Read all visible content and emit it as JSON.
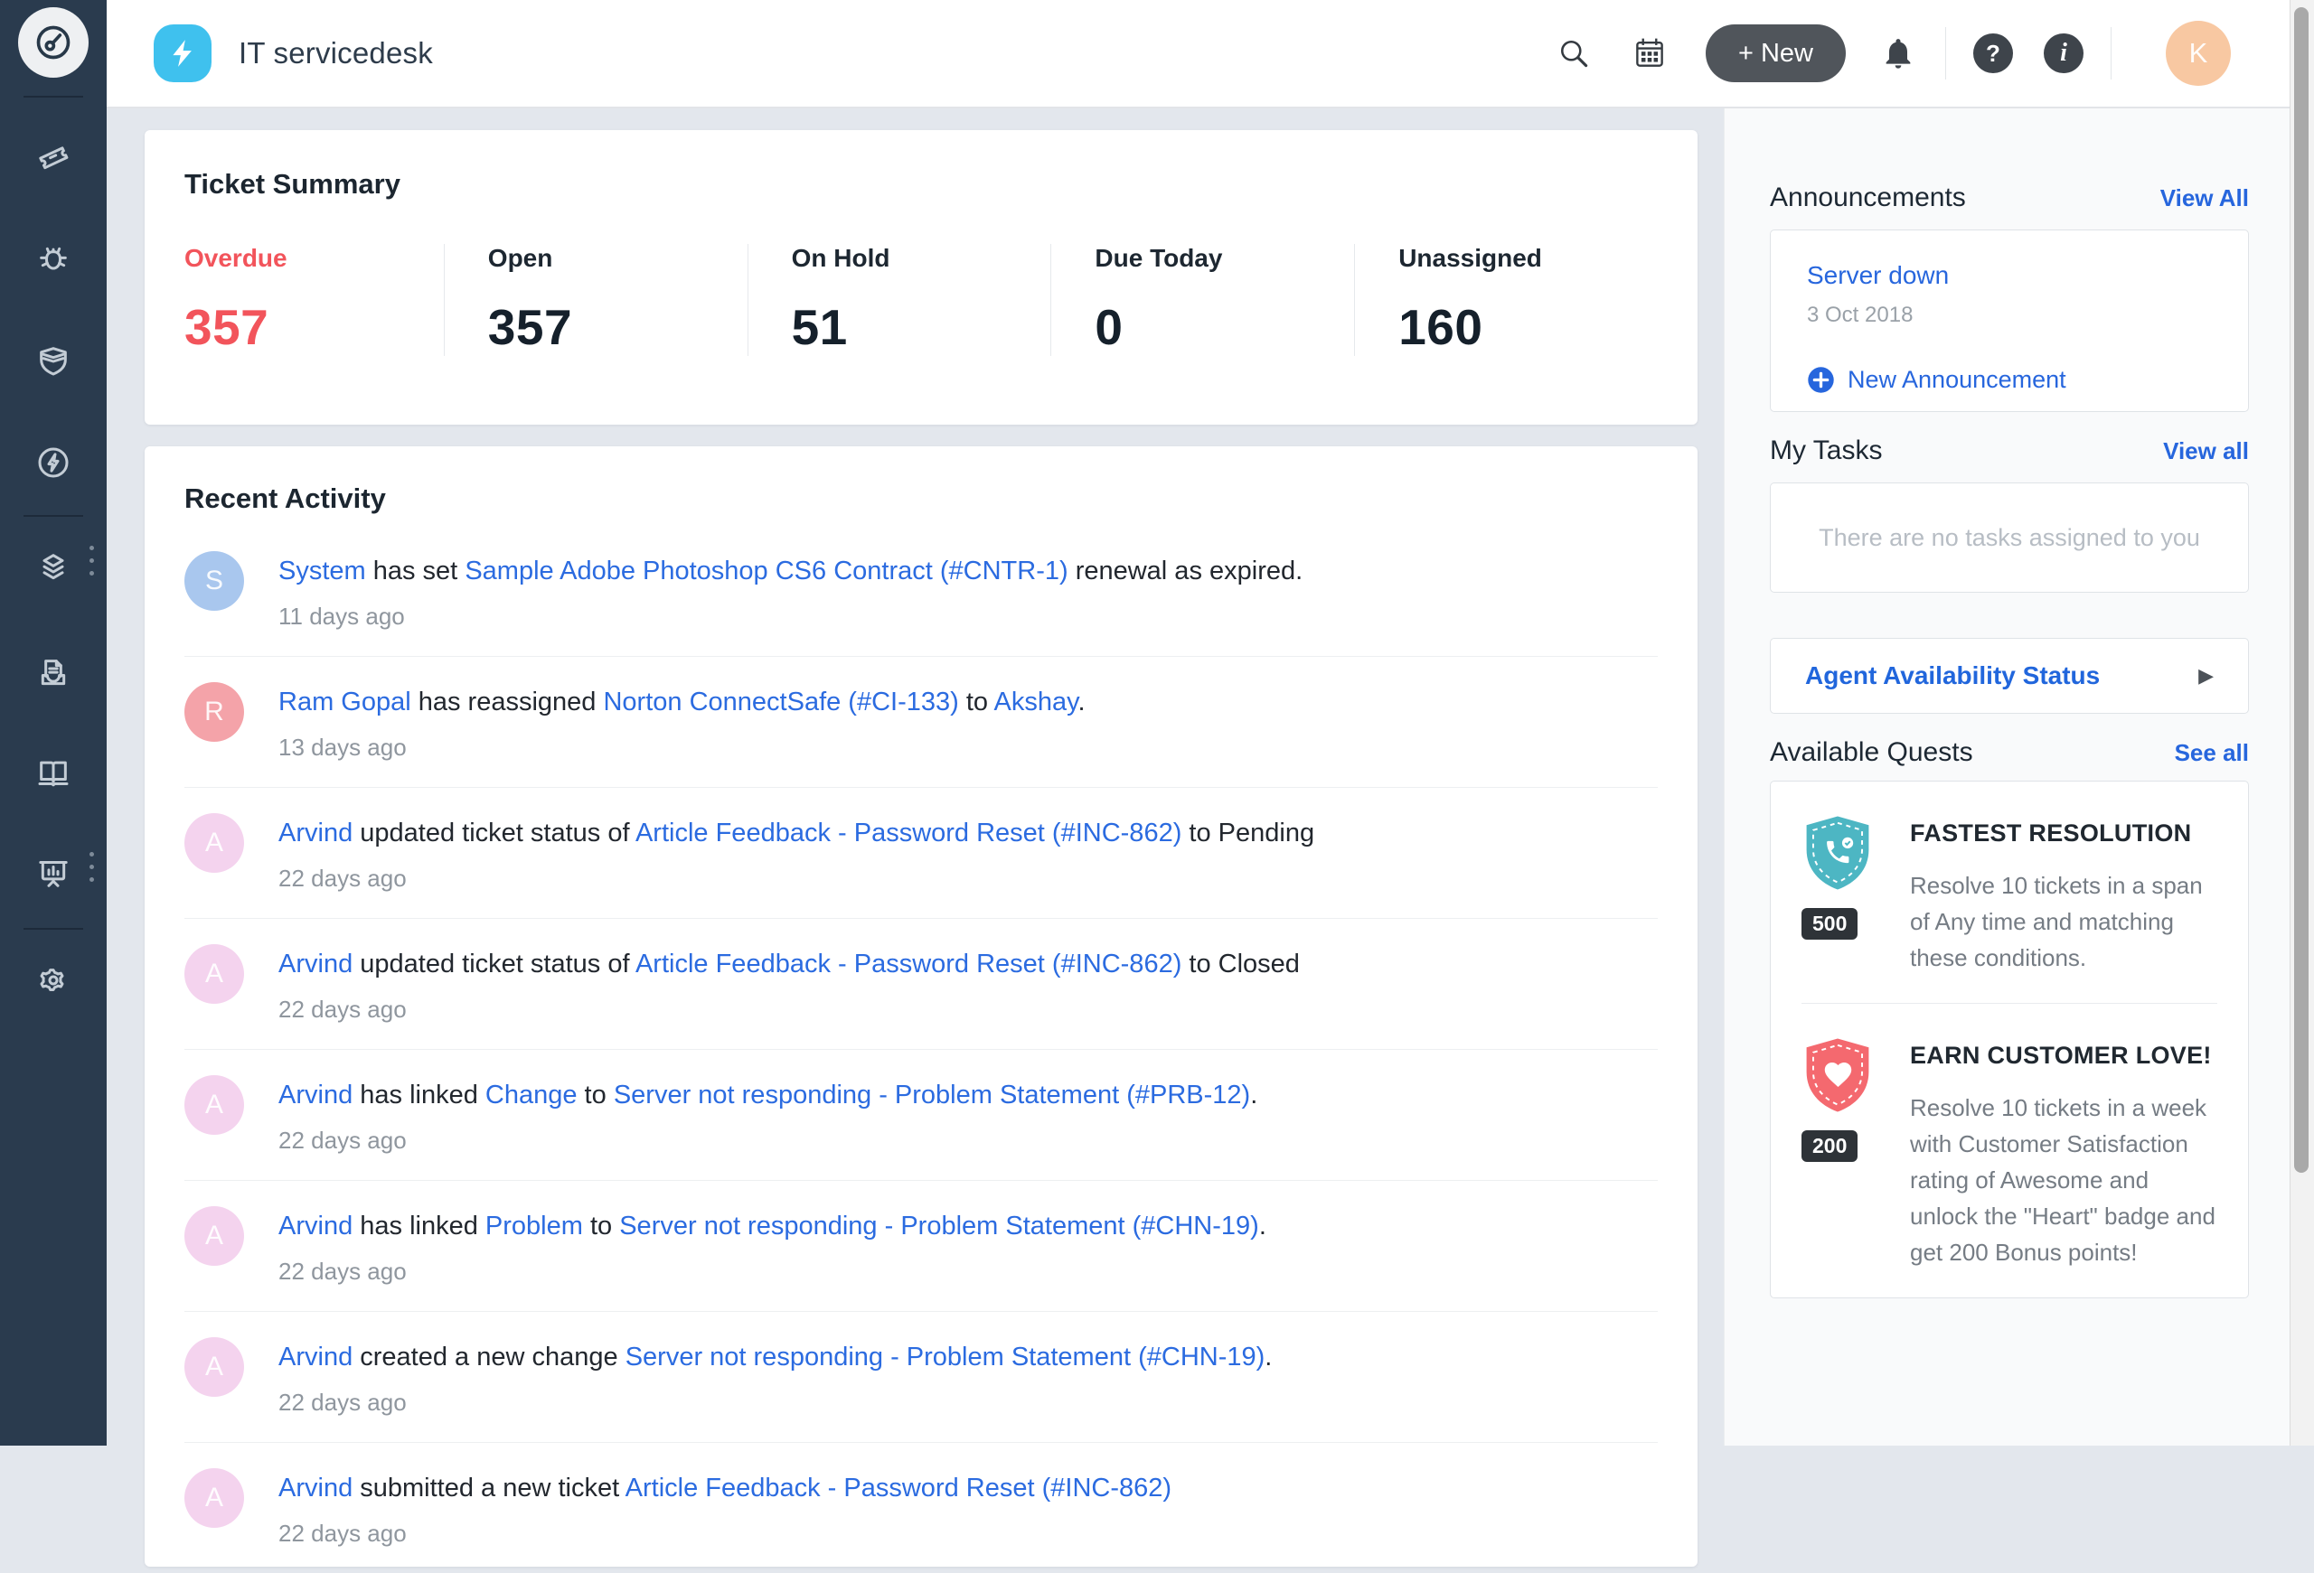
{
  "header": {
    "product_title": "IT servicedesk",
    "new_button_label": "+ New",
    "help_badge": "?",
    "info_badge": "i",
    "avatar_initial": "K"
  },
  "sidebar": {
    "icons": [
      "dashboard-gauge",
      "ticket",
      "bug",
      "shield",
      "bolt-circle",
      "layers",
      "document-tray",
      "book",
      "presentation-chart",
      "gear"
    ]
  },
  "ticket_summary": {
    "title": "Ticket Summary",
    "stats": [
      {
        "label": "Overdue",
        "value": "357",
        "highlight": true
      },
      {
        "label": "Open",
        "value": "357",
        "highlight": false
      },
      {
        "label": "On Hold",
        "value": "51",
        "highlight": false
      },
      {
        "label": "Due Today",
        "value": "0",
        "highlight": false
      },
      {
        "label": "Unassigned",
        "value": "160",
        "highlight": false
      }
    ]
  },
  "activity": {
    "title": "Recent Activity",
    "items": [
      {
        "initial": "S",
        "color": "#a9c7ee",
        "time": "11 days ago",
        "segments": [
          {
            "text": "System",
            "link": true
          },
          {
            "text": " has set ",
            "link": false
          },
          {
            "text": "Sample Adobe Photoshop CS6 Contract (#CNTR-1)",
            "link": true
          },
          {
            "text": " renewal as expired.",
            "link": false
          }
        ]
      },
      {
        "initial": "R",
        "color": "#f4a3a9",
        "time": "13 days ago",
        "segments": [
          {
            "text": "Ram Gopal",
            "link": true
          },
          {
            "text": " has reassigned ",
            "link": false
          },
          {
            "text": "Norton ConnectSafe (#CI-133)",
            "link": true
          },
          {
            "text": " to ",
            "link": false
          },
          {
            "text": "Akshay",
            "link": true
          },
          {
            "text": ".",
            "link": false
          }
        ]
      },
      {
        "initial": "A",
        "color": "#f4d3ee",
        "time": "22 days ago",
        "segments": [
          {
            "text": "Arvind",
            "link": true
          },
          {
            "text": " updated ticket status of ",
            "link": false
          },
          {
            "text": "Article Feedback - Password Reset (#INC-862)",
            "link": true
          },
          {
            "text": " to Pending",
            "link": false
          }
        ]
      },
      {
        "initial": "A",
        "color": "#f4d3ee",
        "time": "22 days ago",
        "segments": [
          {
            "text": "Arvind",
            "link": true
          },
          {
            "text": " updated ticket status of ",
            "link": false
          },
          {
            "text": "Article Feedback - Password Reset (#INC-862)",
            "link": true
          },
          {
            "text": " to Closed",
            "link": false
          }
        ]
      },
      {
        "initial": "A",
        "color": "#f4d3ee",
        "time": "22 days ago",
        "segments": [
          {
            "text": "Arvind",
            "link": true
          },
          {
            "text": " has linked ",
            "link": false
          },
          {
            "text": "Change",
            "link": true
          },
          {
            "text": " to ",
            "link": false
          },
          {
            "text": "Server not responding - Problem Statement (#PRB-12)",
            "link": true
          },
          {
            "text": ".",
            "link": false
          }
        ]
      },
      {
        "initial": "A",
        "color": "#f4d3ee",
        "time": "22 days ago",
        "segments": [
          {
            "text": "Arvind",
            "link": true
          },
          {
            "text": " has linked ",
            "link": false
          },
          {
            "text": "Problem",
            "link": true
          },
          {
            "text": " to ",
            "link": false
          },
          {
            "text": "Server not responding - Problem Statement (#CHN-19)",
            "link": true
          },
          {
            "text": ".",
            "link": false
          }
        ]
      },
      {
        "initial": "A",
        "color": "#f4d3ee",
        "time": "22 days ago",
        "segments": [
          {
            "text": "Arvind",
            "link": true
          },
          {
            "text": " created a new change ",
            "link": false
          },
          {
            "text": "Server not responding - Problem Statement (#CHN-19)",
            "link": true
          },
          {
            "text": ".",
            "link": false
          }
        ]
      },
      {
        "initial": "A",
        "color": "#f4d3ee",
        "time": "22 days ago",
        "segments": [
          {
            "text": "Arvind",
            "link": true
          },
          {
            "text": " submitted a new ticket ",
            "link": false
          },
          {
            "text": "Article Feedback - Password Reset (#INC-862)",
            "link": true
          }
        ]
      }
    ]
  },
  "announcements": {
    "title": "Announcements",
    "view_all": "View All",
    "item_title": "Server down",
    "item_date": "3 Oct 2018",
    "new_label": "New Announcement"
  },
  "tasks": {
    "title": "My Tasks",
    "view_all": "View all",
    "empty_text": "There are no tasks assigned to you"
  },
  "agent_availability": {
    "label": "Agent Availability Status"
  },
  "quests": {
    "title": "Available Quests",
    "see_all": "See all",
    "items": [
      {
        "title": "FASTEST RESOLUTION",
        "points": "500",
        "color": "#4db6c3",
        "icon": "phone",
        "desc": "Resolve 10 tickets in a span of Any time and matching these conditions."
      },
      {
        "title": "EARN CUSTOMER LOVE!",
        "points": "200",
        "color": "#f4696f",
        "icon": "heart",
        "desc": "Resolve 10 tickets in a week with Customer Satisfaction rating of Awesome and unlock the \"Heart\" badge and get 200 Bonus points!"
      }
    ]
  },
  "colors": {
    "accent_blue": "#2b6be0",
    "overdue_red": "#f2545b",
    "sidebar_bg": "#2a3b4e",
    "logo_cyan": "#3fc1ee",
    "quest_teal": "#4db6c3",
    "quest_red": "#f4696f",
    "avatar_peach": "#f8c8a2"
  }
}
